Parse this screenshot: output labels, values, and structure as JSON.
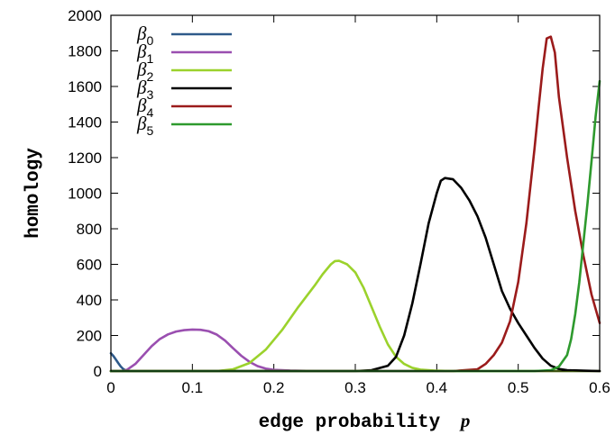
{
  "chart_data": {
    "type": "line",
    "title": "",
    "xlabel": "edge probability",
    "xlabel_var": "p",
    "ylabel": "homology",
    "xlim": [
      0,
      0.6
    ],
    "ylim": [
      0,
      2000
    ],
    "xticks": [
      "0",
      "0.1",
      "0.2",
      "0.3",
      "0.4",
      "0.5",
      "0.6"
    ],
    "xtick_values": [
      0,
      0.1,
      0.2,
      0.3,
      0.4,
      0.5,
      0.6
    ],
    "yticks": [
      "0",
      "200",
      "400",
      "600",
      "800",
      "1000",
      "1200",
      "1400",
      "1600",
      "1800",
      "2000"
    ],
    "ytick_values": [
      0,
      200,
      400,
      600,
      800,
      1000,
      1200,
      1400,
      1600,
      1800,
      2000
    ],
    "grid": false,
    "legend_position": "top-left",
    "series": [
      {
        "name": "β",
        "sub": "0",
        "color": "#2f5a8a",
        "points": [
          [
            0.0,
            100
          ],
          [
            0.003,
            85
          ],
          [
            0.006,
            65
          ],
          [
            0.009,
            45
          ],
          [
            0.012,
            26
          ],
          [
            0.015,
            12
          ],
          [
            0.018,
            4
          ],
          [
            0.022,
            0
          ],
          [
            0.6,
            0
          ]
        ]
      },
      {
        "name": "β",
        "sub": "1",
        "color": "#9a4fb0",
        "points": [
          [
            0.0,
            0
          ],
          [
            0.015,
            0
          ],
          [
            0.02,
            8
          ],
          [
            0.03,
            40
          ],
          [
            0.04,
            90
          ],
          [
            0.05,
            140
          ],
          [
            0.06,
            180
          ],
          [
            0.07,
            206
          ],
          [
            0.08,
            222
          ],
          [
            0.09,
            230
          ],
          [
            0.1,
            233
          ],
          [
            0.11,
            232
          ],
          [
            0.12,
            224
          ],
          [
            0.13,
            205
          ],
          [
            0.14,
            172
          ],
          [
            0.15,
            128
          ],
          [
            0.16,
            86
          ],
          [
            0.17,
            52
          ],
          [
            0.18,
            28
          ],
          [
            0.19,
            14
          ],
          [
            0.2,
            7
          ],
          [
            0.22,
            3
          ],
          [
            0.24,
            1
          ],
          [
            0.26,
            0
          ],
          [
            0.6,
            0
          ]
        ]
      },
      {
        "name": "β",
        "sub": "2",
        "color": "#9bd22c",
        "points": [
          [
            0.0,
            0
          ],
          [
            0.13,
            0
          ],
          [
            0.15,
            10
          ],
          [
            0.17,
            45
          ],
          [
            0.19,
            120
          ],
          [
            0.21,
            230
          ],
          [
            0.23,
            360
          ],
          [
            0.25,
            480
          ],
          [
            0.26,
            545
          ],
          [
            0.27,
            600
          ],
          [
            0.275,
            618
          ],
          [
            0.28,
            620
          ],
          [
            0.29,
            600
          ],
          [
            0.3,
            555
          ],
          [
            0.31,
            470
          ],
          [
            0.32,
            360
          ],
          [
            0.33,
            250
          ],
          [
            0.34,
            150
          ],
          [
            0.35,
            80
          ],
          [
            0.36,
            40
          ],
          [
            0.37,
            18
          ],
          [
            0.38,
            8
          ],
          [
            0.4,
            2
          ],
          [
            0.42,
            0
          ],
          [
            0.6,
            0
          ]
        ]
      },
      {
        "name": "β",
        "sub": "3",
        "color": "#000000",
        "points": [
          [
            0.0,
            0
          ],
          [
            0.3,
            0
          ],
          [
            0.32,
            5
          ],
          [
            0.34,
            30
          ],
          [
            0.35,
            80
          ],
          [
            0.36,
            200
          ],
          [
            0.37,
            380
          ],
          [
            0.38,
            600
          ],
          [
            0.39,
            830
          ],
          [
            0.4,
            1000
          ],
          [
            0.405,
            1070
          ],
          [
            0.41,
            1085
          ],
          [
            0.42,
            1078
          ],
          [
            0.43,
            1030
          ],
          [
            0.44,
            960
          ],
          [
            0.45,
            870
          ],
          [
            0.46,
            750
          ],
          [
            0.47,
            600
          ],
          [
            0.48,
            450
          ],
          [
            0.49,
            350
          ],
          [
            0.5,
            270
          ],
          [
            0.51,
            200
          ],
          [
            0.52,
            130
          ],
          [
            0.53,
            70
          ],
          [
            0.54,
            30
          ],
          [
            0.55,
            12
          ],
          [
            0.56,
            5
          ],
          [
            0.58,
            2
          ],
          [
            0.6,
            0
          ]
        ]
      },
      {
        "name": "β",
        "sub": "4",
        "color": "#9b1b1b",
        "points": [
          [
            0.0,
            0
          ],
          [
            0.42,
            0
          ],
          [
            0.45,
            10
          ],
          [
            0.46,
            40
          ],
          [
            0.47,
            90
          ],
          [
            0.48,
            160
          ],
          [
            0.49,
            280
          ],
          [
            0.5,
            500
          ],
          [
            0.51,
            830
          ],
          [
            0.52,
            1250
          ],
          [
            0.525,
            1480
          ],
          [
            0.53,
            1700
          ],
          [
            0.535,
            1870
          ],
          [
            0.54,
            1880
          ],
          [
            0.545,
            1790
          ],
          [
            0.55,
            1540
          ],
          [
            0.56,
            1200
          ],
          [
            0.57,
            900
          ],
          [
            0.58,
            650
          ],
          [
            0.59,
            430
          ],
          [
            0.6,
            270
          ]
        ]
      },
      {
        "name": "β",
        "sub": "5",
        "color": "#2e9a2e",
        "points": [
          [
            0.0,
            0
          ],
          [
            0.52,
            0
          ],
          [
            0.54,
            5
          ],
          [
            0.55,
            25
          ],
          [
            0.56,
            90
          ],
          [
            0.565,
            180
          ],
          [
            0.57,
            320
          ],
          [
            0.575,
            500
          ],
          [
            0.58,
            720
          ],
          [
            0.585,
            940
          ],
          [
            0.59,
            1180
          ],
          [
            0.595,
            1430
          ],
          [
            0.6,
            1630
          ]
        ]
      }
    ]
  }
}
